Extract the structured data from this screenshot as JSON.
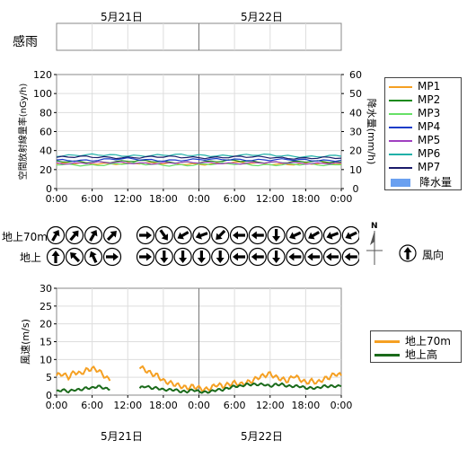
{
  "dates": {
    "day1": "5月21日",
    "day2": "5月22日"
  },
  "rain_sensor": {
    "label": "感雨"
  },
  "time_ticks": [
    "0:00",
    "6:00",
    "12:00",
    "18:00",
    "0:00",
    "6:00",
    "12:00",
    "18:00",
    "0:00"
  ],
  "wind_dir_rows": {
    "upper": "地上70m",
    "lower": "地上"
  },
  "wind_dir_legend": {
    "label": "風向",
    "north": "N"
  },
  "wind_dirs": {
    "upper": [
      {
        "slot": 0,
        "deg": 30
      },
      {
        "slot": 1,
        "deg": 40
      },
      {
        "slot": 2,
        "deg": 30
      },
      {
        "slot": 3,
        "deg": 45
      },
      {
        "slot": 5,
        "deg": 90
      },
      {
        "slot": 6,
        "deg": 145
      },
      {
        "slot": 7,
        "deg": 240
      },
      {
        "slot": 8,
        "deg": 250
      },
      {
        "slot": 9,
        "deg": 225
      },
      {
        "slot": 10,
        "deg": 270
      },
      {
        "slot": 11,
        "deg": 270
      },
      {
        "slot": 12,
        "deg": 180
      },
      {
        "slot": 13,
        "deg": 245
      },
      {
        "slot": 14,
        "deg": 240
      },
      {
        "slot": 15,
        "deg": 250
      },
      {
        "slot": 16,
        "deg": 245
      },
      {
        "slot": 17,
        "deg": 250
      },
      {
        "slot": 18,
        "deg": 245
      }
    ],
    "lower": [
      {
        "slot": 0,
        "deg": 0
      },
      {
        "slot": 1,
        "deg": 315
      },
      {
        "slot": 2,
        "deg": 335
      },
      {
        "slot": 3,
        "deg": 90
      },
      {
        "slot": 5,
        "deg": 90
      },
      {
        "slot": 6,
        "deg": 180
      },
      {
        "slot": 7,
        "deg": 180
      },
      {
        "slot": 8,
        "deg": 180
      },
      {
        "slot": 9,
        "deg": 180
      },
      {
        "slot": 10,
        "deg": 270
      },
      {
        "slot": 11,
        "deg": 270
      },
      {
        "slot": 12,
        "deg": 180
      },
      {
        "slot": 13,
        "deg": 270
      },
      {
        "slot": 14,
        "deg": 270
      },
      {
        "slot": 15,
        "deg": 270
      },
      {
        "slot": 16,
        "deg": 270
      },
      {
        "slot": 17,
        "deg": 270
      },
      {
        "slot": 18,
        "deg": 270
      }
    ]
  },
  "chart_data": [
    {
      "type": "line",
      "ylabel": "空間放射線量率(nGy/h)",
      "y2label": "降水量(mm/h)",
      "ylim": [
        0,
        120
      ],
      "y2lim": [
        0,
        60
      ],
      "yticks": [
        0,
        20,
        40,
        60,
        80,
        100,
        120
      ],
      "y2ticks": [
        0,
        10,
        20,
        30,
        40,
        50,
        60
      ],
      "xlabel_ticks": "time_ticks",
      "grid": true,
      "legend": "right",
      "x_hours": [
        0,
        6,
        12,
        18,
        24,
        30,
        36,
        42,
        48
      ],
      "series": [
        {
          "name": "MP1",
          "color": "#f5a023",
          "values": [
            26,
            26,
            27,
            26,
            26,
            27,
            26,
            26,
            26
          ]
        },
        {
          "name": "MP2",
          "color": "#1a8a1a",
          "values": [
            28,
            28,
            29,
            28,
            28,
            29,
            28,
            28,
            28
          ]
        },
        {
          "name": "MP3",
          "color": "#66e066",
          "values": [
            25,
            25,
            26,
            25,
            25,
            26,
            25,
            25,
            25
          ]
        },
        {
          "name": "MP4",
          "color": "#1a3cc8",
          "values": [
            30,
            30,
            31,
            30,
            30,
            31,
            30,
            30,
            30
          ]
        },
        {
          "name": "MP5",
          "color": "#a040c0",
          "values": [
            27,
            27,
            27,
            27,
            27,
            27,
            27,
            27,
            27
          ]
        },
        {
          "name": "MP6",
          "color": "#20b0a8",
          "values": [
            35,
            35,
            35,
            35,
            35,
            35,
            35,
            34,
            34
          ]
        },
        {
          "name": "MP7",
          "color": "#1a1a6a",
          "values": [
            33,
            33,
            33,
            33,
            33,
            33,
            33,
            32,
            32
          ]
        }
      ],
      "precip_legend": {
        "name": "降水量",
        "color": "#6aa0f0"
      }
    },
    {
      "type": "line",
      "ylabel": "風速(m/s)",
      "ylim": [
        0,
        30
      ],
      "yticks": [
        0,
        5,
        10,
        15,
        20,
        25,
        30
      ],
      "grid": true,
      "legend": "right",
      "series": [
        {
          "name": "地上70m",
          "color": "#f5a023",
          "x": [
            0,
            1,
            2,
            3,
            4,
            5,
            6,
            7,
            8,
            9,
            14,
            15,
            16,
            17,
            18,
            19,
            20,
            21,
            22,
            23,
            24,
            25,
            26,
            27,
            28,
            29,
            30,
            31,
            32,
            33,
            34,
            35,
            36,
            37,
            38,
            39,
            40,
            41,
            42,
            43,
            44,
            45,
            46,
            47,
            48
          ],
          "values": [
            5.5,
            6,
            5,
            6.5,
            6,
            7,
            7.5,
            7,
            5.5,
            4,
            8,
            7,
            6,
            5.5,
            4,
            3.5,
            3,
            2.5,
            2,
            2.5,
            2,
            1.5,
            2,
            3,
            2.5,
            3,
            3.5,
            3,
            3.5,
            4,
            5,
            5.5,
            6,
            5,
            4.5,
            4,
            5.5,
            4.5,
            3.5,
            4,
            3.5,
            4.5,
            5,
            6,
            5.5
          ]
        },
        {
          "name": "地上高",
          "color": "#1a6a1a",
          "x": [
            0,
            1,
            2,
            3,
            4,
            5,
            6,
            7,
            8,
            9,
            14,
            15,
            16,
            17,
            18,
            19,
            20,
            21,
            22,
            23,
            24,
            25,
            26,
            27,
            28,
            29,
            30,
            31,
            32,
            33,
            34,
            35,
            36,
            37,
            38,
            39,
            40,
            41,
            42,
            43,
            44,
            45,
            46,
            47,
            48
          ],
          "values": [
            1,
            1.5,
            1,
            1.5,
            1.5,
            2,
            2,
            2.5,
            2,
            1.5,
            2,
            2.5,
            2,
            2,
            1.5,
            1.5,
            1.5,
            1,
            1,
            1.5,
            1,
            0.8,
            1,
            1.5,
            1.5,
            2,
            2.5,
            2.5,
            3,
            3,
            3,
            3,
            2.5,
            3,
            3,
            2.5,
            2.5,
            2.5,
            2,
            2,
            2,
            2.5,
            2.5,
            2.5,
            2.5
          ]
        }
      ]
    }
  ]
}
